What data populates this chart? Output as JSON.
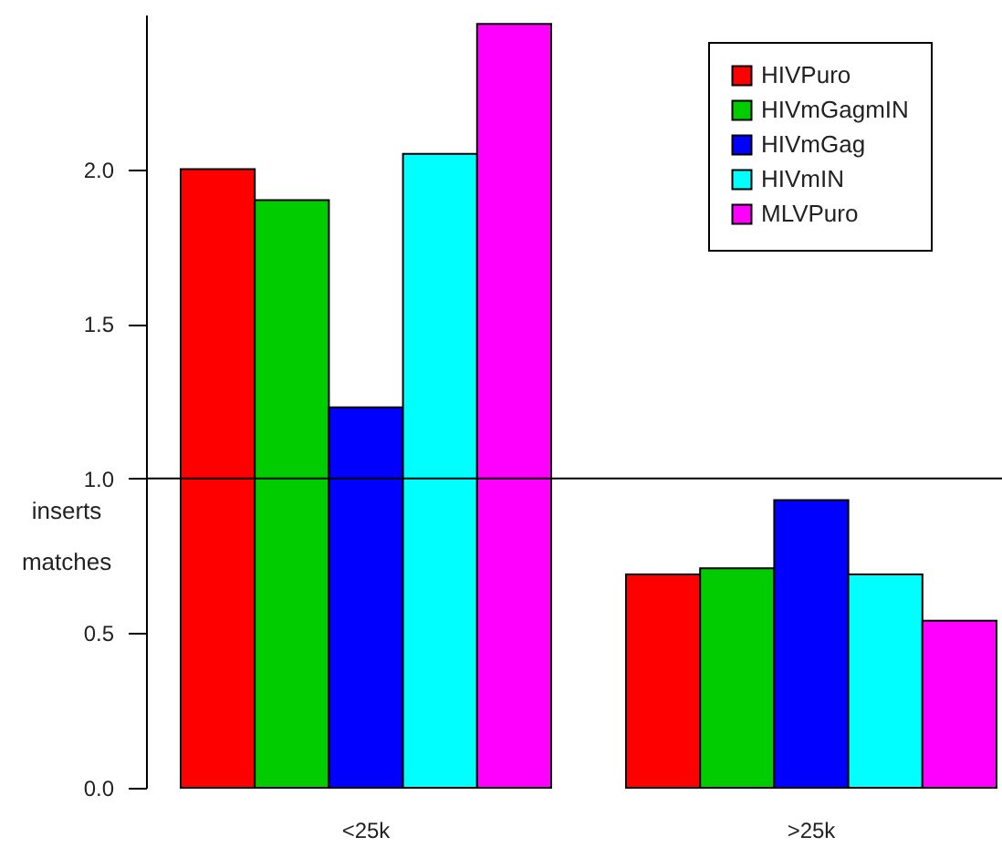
{
  "chart_data": {
    "type": "bar",
    "ylabel": "inserts\nmatches",
    "categories": [
      "<25k",
      ">25k"
    ],
    "series": [
      {
        "name": "HIVPuro",
        "color": "#ff0000",
        "values": [
          2.0,
          0.69
        ]
      },
      {
        "name": "HIVmGagmIN",
        "color": "#00cc00",
        "values": [
          1.9,
          0.71
        ]
      },
      {
        "name": "HIVmGag",
        "color": "#0000ff",
        "values": [
          1.23,
          0.93
        ]
      },
      {
        "name": "HIVmIN",
        "color": "#00ffff",
        "values": [
          2.05,
          0.69
        ]
      },
      {
        "name": "MLVPuro",
        "color": "#ff00ff",
        "values": [
          2.47,
          0.54
        ]
      }
    ],
    "ylim": [
      0,
      2.5
    ],
    "yticks": [
      {
        "value": 0,
        "label": "0.0"
      },
      0.5,
      {
        "value": 1,
        "label": "1.0"
      },
      1.5,
      {
        "value": 2,
        "label": "2.0"
      }
    ],
    "ref_lines": [
      {
        "axis": "y",
        "value": 1.0
      }
    ],
    "grid": false,
    "legend": "top right"
  }
}
